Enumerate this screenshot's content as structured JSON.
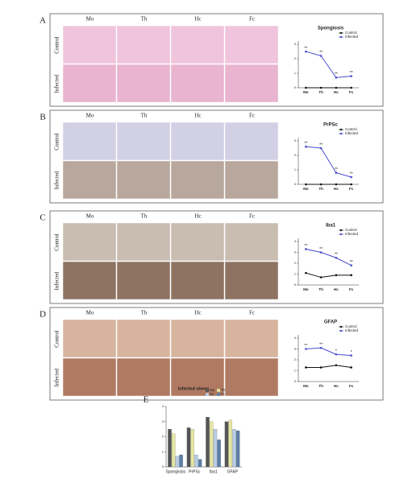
{
  "panels": [
    {
      "letter": "A",
      "columns": [
        "Mo",
        "Th",
        "Hc",
        "Fc"
      ],
      "rows": [
        "Control",
        "Infected"
      ]
    },
    {
      "letter": "B",
      "columns": [
        "Mo",
        "Th",
        "Hc",
        "Fc"
      ],
      "rows": [
        "Control",
        "Infected"
      ]
    },
    {
      "letter": "C",
      "columns": [
        "Mo",
        "Th",
        "Hc",
        "Fc"
      ],
      "rows": [
        "Control",
        "Infected"
      ]
    },
    {
      "letter": "D",
      "columns": [
        "Mo",
        "Th",
        "Hc",
        "Fc"
      ],
      "rows": [
        "Control",
        "Infected"
      ]
    }
  ],
  "bar_panel": {
    "letter": "E"
  },
  "chart_data": [
    {
      "type": "line",
      "title": "Spongiosis",
      "categories": [
        "Mo",
        "Th",
        "Hc",
        "Fc"
      ],
      "series": [
        {
          "name": "Control",
          "color": "#111111",
          "values": [
            0,
            0,
            0,
            0
          ]
        },
        {
          "name": "Infected",
          "color": "#4a4ad0",
          "values": [
            2.5,
            2.2,
            0.7,
            0.8
          ]
        }
      ],
      "annotations": [
        "**",
        "**",
        "**",
        "**"
      ],
      "ylim": [
        0,
        3
      ],
      "yticks": [
        0,
        1,
        2,
        3
      ]
    },
    {
      "type": "line",
      "title": "PrPSc",
      "categories": [
        "Mo",
        "Th",
        "Hc",
        "Fc"
      ],
      "series": [
        {
          "name": "Control",
          "color": "#111111",
          "values": [
            0,
            0,
            0,
            0
          ]
        },
        {
          "name": "Infected",
          "color": "#4a4ad0",
          "values": [
            2.6,
            2.5,
            0.8,
            0.5
          ]
        }
      ],
      "annotations": [
        "**",
        "**",
        "**",
        "**"
      ],
      "ylim": [
        0,
        3
      ],
      "yticks": [
        0,
        1,
        2,
        3
      ]
    },
    {
      "type": "line",
      "title": "Iba1",
      "categories": [
        "Mo",
        "Th",
        "Hc",
        "Fc"
      ],
      "series": [
        {
          "name": "Control",
          "color": "#111111",
          "values": [
            1.1,
            0.7,
            0.9,
            0.9
          ]
        },
        {
          "name": "Infected",
          "color": "#4a4ad0",
          "values": [
            3.3,
            3.0,
            2.5,
            1.8
          ]
        }
      ],
      "annotations": [
        "**",
        "**",
        "**",
        "**"
      ],
      "ylim": [
        0,
        4
      ],
      "yticks": [
        0,
        1,
        2,
        3,
        4
      ]
    },
    {
      "type": "line",
      "title": "GFAP",
      "categories": [
        "Mo",
        "Th",
        "Hc",
        "Fc"
      ],
      "series": [
        {
          "name": "Control",
          "color": "#111111",
          "values": [
            1.3,
            1.3,
            1.5,
            1.3
          ]
        },
        {
          "name": "Infected",
          "color": "#4a4ad0",
          "values": [
            3.0,
            3.1,
            2.5,
            2.4
          ]
        }
      ],
      "annotations": [
        "**",
        "**",
        "*",
        "*"
      ],
      "ylim": [
        0,
        4
      ],
      "yticks": [
        0,
        1,
        2,
        3,
        4
      ]
    },
    {
      "type": "bar",
      "title": "Infected sheep",
      "categories": [
        "Spongiosis",
        "PrPSc",
        "Iba1",
        "GFAP"
      ],
      "series": [
        {
          "name": "Mo",
          "color": "#555555",
          "values": [
            2.5,
            2.6,
            3.3,
            3.0
          ]
        },
        {
          "name": "Th",
          "color": "#e6e6a0",
          "values": [
            2.2,
            2.5,
            3.0,
            3.1
          ]
        },
        {
          "name": "Hc",
          "color": "#b8cce4",
          "values": [
            0.7,
            0.8,
            2.5,
            2.5
          ]
        },
        {
          "name": "Fc",
          "color": "#5b7fa6",
          "values": [
            0.8,
            0.5,
            1.8,
            2.4
          ]
        }
      ],
      "ylim": [
        0,
        4
      ],
      "yticks": [
        0,
        1,
        2,
        3,
        4
      ]
    }
  ]
}
